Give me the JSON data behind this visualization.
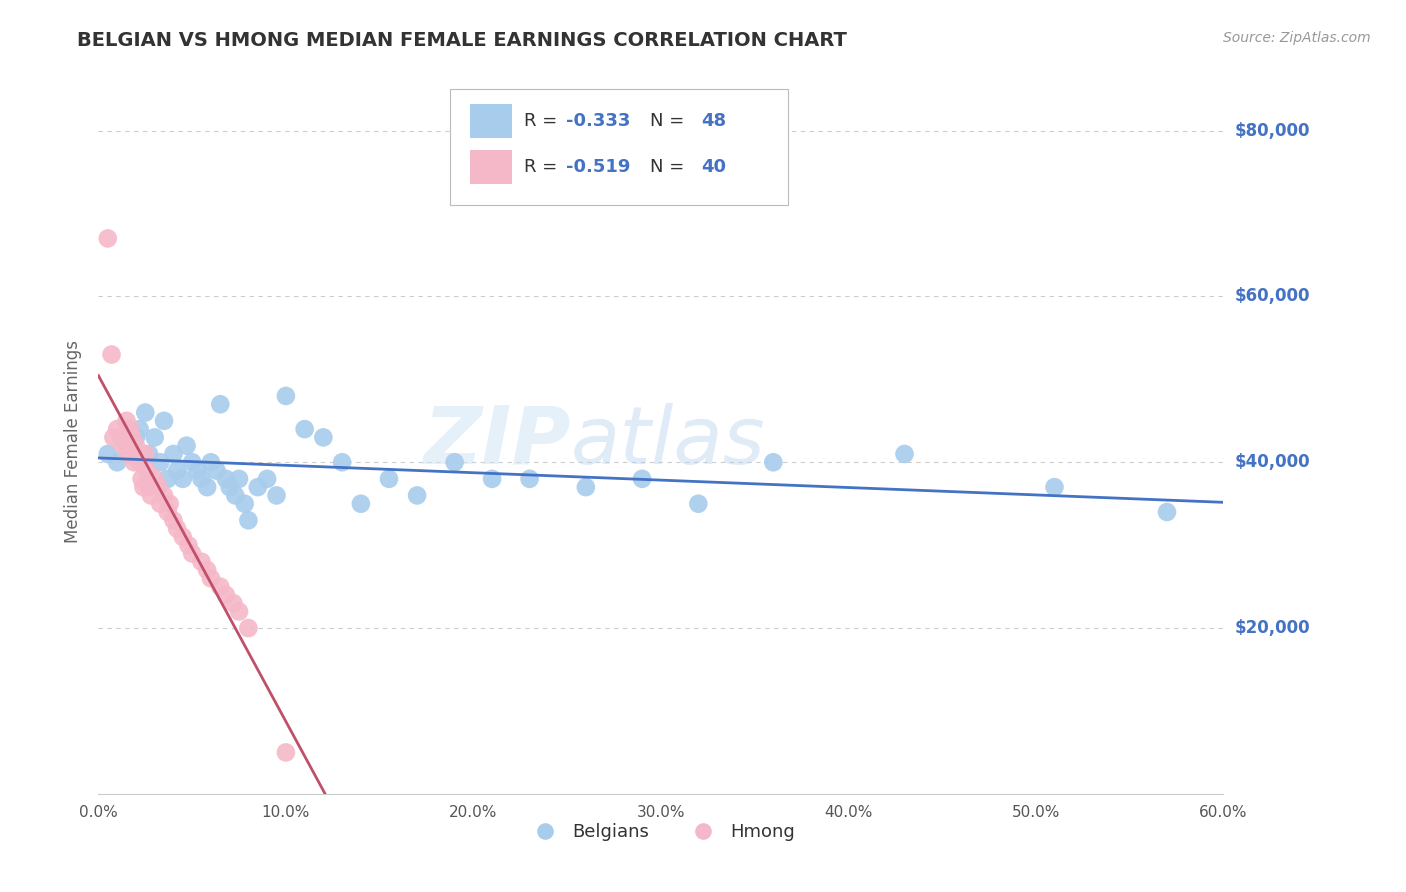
{
  "title": "BELGIAN VS HMONG MEDIAN FEMALE EARNINGS CORRELATION CHART",
  "source": "Source: ZipAtlas.com",
  "ylabel": "Median Female Earnings",
  "xlim": [
    0.0,
    0.6
  ],
  "ylim": [
    0,
    85000
  ],
  "yticks": [
    0,
    20000,
    40000,
    60000,
    80000
  ],
  "ytick_labels": [
    "",
    "$20,000",
    "$40,000",
    "$60,000",
    "$80,000"
  ],
  "xticks": [
    0.0,
    0.1,
    0.2,
    0.3,
    0.4,
    0.5,
    0.6
  ],
  "xtick_labels": [
    "0.0%",
    "10.0%",
    "20.0%",
    "30.0%",
    "40.0%",
    "50.0%",
    "60.0%"
  ],
  "belgians_x": [
    0.005,
    0.01,
    0.015,
    0.02,
    0.022,
    0.025,
    0.027,
    0.03,
    0.033,
    0.035,
    0.037,
    0.04,
    0.042,
    0.045,
    0.047,
    0.05,
    0.053,
    0.055,
    0.058,
    0.06,
    0.063,
    0.065,
    0.068,
    0.07,
    0.073,
    0.075,
    0.078,
    0.08,
    0.085,
    0.09,
    0.095,
    0.1,
    0.11,
    0.12,
    0.13,
    0.14,
    0.155,
    0.17,
    0.19,
    0.21,
    0.23,
    0.26,
    0.29,
    0.32,
    0.36,
    0.43,
    0.51,
    0.57
  ],
  "belgians_y": [
    41000,
    40000,
    42000,
    43000,
    44000,
    46000,
    41000,
    43000,
    40000,
    45000,
    38000,
    41000,
    39000,
    38000,
    42000,
    40000,
    39000,
    38000,
    37000,
    40000,
    39000,
    47000,
    38000,
    37000,
    36000,
    38000,
    35000,
    33000,
    37000,
    38000,
    36000,
    48000,
    44000,
    43000,
    40000,
    35000,
    38000,
    36000,
    40000,
    38000,
    38000,
    37000,
    38000,
    35000,
    40000,
    41000,
    37000,
    34000
  ],
  "hmong_x": [
    0.005,
    0.007,
    0.008,
    0.01,
    0.012,
    0.013,
    0.015,
    0.016,
    0.017,
    0.018,
    0.019,
    0.02,
    0.021,
    0.022,
    0.023,
    0.024,
    0.025,
    0.026,
    0.027,
    0.028,
    0.03,
    0.032,
    0.033,
    0.035,
    0.037,
    0.038,
    0.04,
    0.042,
    0.045,
    0.048,
    0.05,
    0.055,
    0.058,
    0.06,
    0.065,
    0.068,
    0.072,
    0.075,
    0.08,
    0.1
  ],
  "hmong_y": [
    67000,
    53000,
    43000,
    44000,
    43000,
    42000,
    45000,
    41000,
    44000,
    43000,
    40000,
    42000,
    41000,
    40000,
    38000,
    37000,
    41000,
    39000,
    37000,
    36000,
    38000,
    37000,
    35000,
    36000,
    34000,
    35000,
    33000,
    32000,
    31000,
    30000,
    29000,
    28000,
    27000,
    26000,
    25000,
    24000,
    23000,
    22000,
    20000,
    5000
  ],
  "belgian_color": "#a8ccec",
  "hmong_color": "#f5b8c8",
  "belgian_line_color": "#4472c4",
  "hmong_line_color": "#c0506a",
  "belgian_R": -0.333,
  "belgian_N": 48,
  "hmong_R": -0.519,
  "hmong_N": 40,
  "watermark_zip": "ZIP",
  "watermark_atlas": "atlas",
  "background_color": "#ffffff",
  "grid_color": "#cccccc",
  "title_color": "#333333",
  "axis_label_color": "#666666",
  "ytick_color": "#4472c4",
  "legend_R_color": "#4472c4",
  "legend_N_color": "#4472c4"
}
